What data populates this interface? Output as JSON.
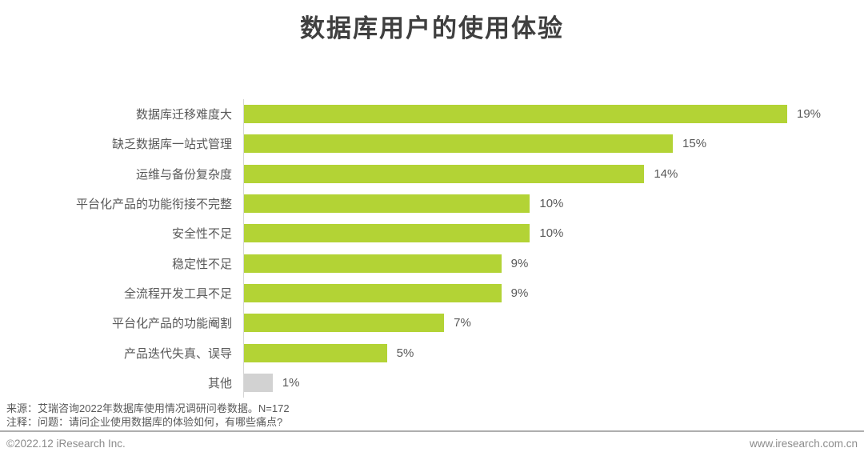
{
  "title": "数据库用户的使用体验",
  "chart_data": {
    "type": "bar",
    "orientation": "horizontal",
    "title": "数据库用户的使用体验",
    "categories": [
      "数据库迁移难度大",
      "缺乏数据库一站式管理",
      "运维与备份复杂度",
      "平台化产品的功能衔接不完整",
      "安全性不足",
      "稳定性不足",
      "全流程开发工具不足",
      "平台化产品的功能阉割",
      "产品迭代失真、误导",
      "其他"
    ],
    "values": [
      19,
      15,
      14,
      10,
      10,
      9,
      9,
      7,
      5,
      1
    ],
    "value_labels": [
      "19%",
      "15%",
      "14%",
      "10%",
      "10%",
      "9%",
      "9%",
      "7%",
      "5%",
      "1%"
    ],
    "bar_colors": [
      "#b3d335",
      "#b3d335",
      "#b3d335",
      "#b3d335",
      "#b3d335",
      "#b3d335",
      "#b3d335",
      "#b3d335",
      "#b3d335",
      "#d2d2d2"
    ],
    "xlim": [
      0,
      19
    ],
    "grid": false,
    "legend": false,
    "accent_color": "#b3d335",
    "other_color": "#d2d2d2"
  },
  "notes": {
    "source": "来源：艾瑞咨询2022年数据库使用情况调研问卷数据。N=172",
    "question": "注释：问题：请问企业使用数据库的体验如何，有哪些痛点?"
  },
  "footer": {
    "left": "©2022.12 iResearch Inc.",
    "right": "www.iresearch.com.cn"
  }
}
